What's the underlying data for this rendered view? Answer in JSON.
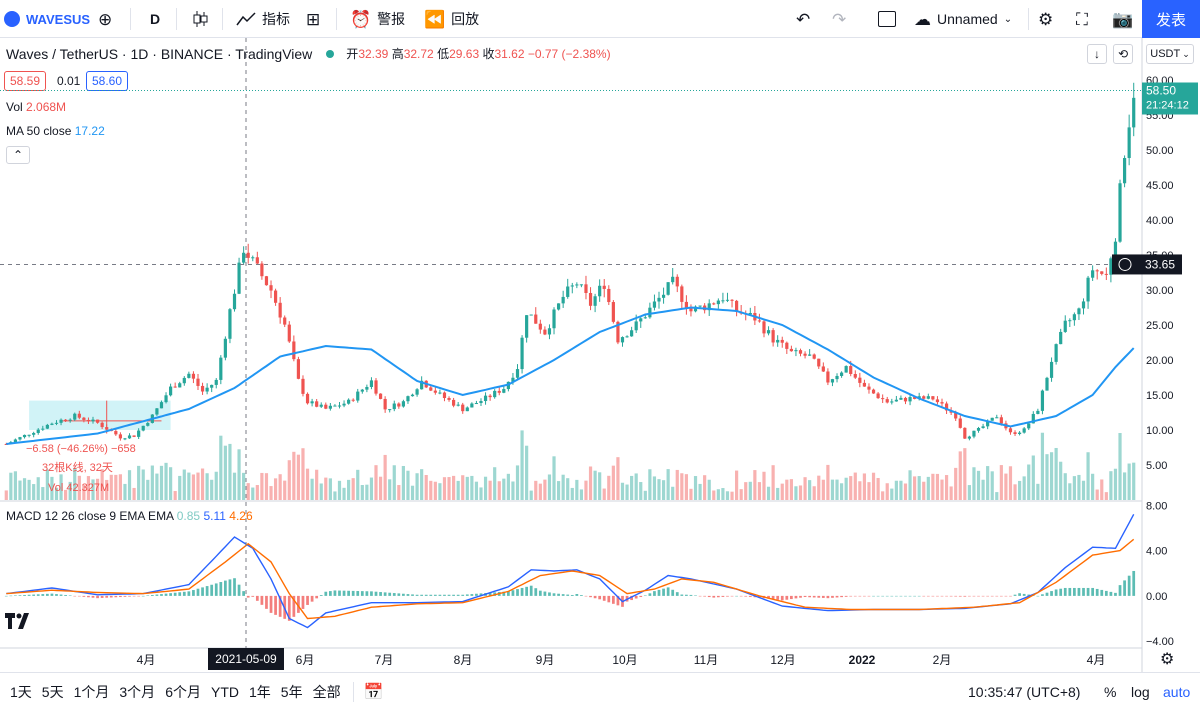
{
  "toolbar": {
    "symbol": "WAVESUS",
    "interval": "D",
    "indicators": "指标",
    "alert": "警报",
    "replay": "回放",
    "layout_name": "Unnamed",
    "publish": "发表"
  },
  "legend": {
    "title": "Waves / TetherUS · 1D · BINANCE · TradingView",
    "o_label": "开",
    "o": "32.39",
    "h_label": "高",
    "h": "32.72",
    "l_label": "低",
    "l": "29.63",
    "c_label": "收",
    "c": "31.62",
    "change": "−0.77 (−2.38%)",
    "sell": "58.59",
    "spread": "0.01",
    "buy": "58.60",
    "vol_label": "Vol",
    "vol_value": "2.068M",
    "ma_label": "MA 50 close",
    "ma_value": "17.22",
    "macd_label": "MACD 12 26 close 9 EMA EMA",
    "macd_hist": "0.85",
    "macd_line": "5.11",
    "macd_signal": "4.26",
    "currency": "USDT"
  },
  "measure": {
    "line1": "−6.58 (−46.26%) −658",
    "line2": "32根K线, 32天",
    "line3": "Vol 42.327M"
  },
  "crosshair": {
    "date": "2021-05-09",
    "price": "33.65"
  },
  "last_price": {
    "value": "58.50",
    "countdown": "21:24:12"
  },
  "colors": {
    "up": "#26a69a",
    "down": "#ef5350",
    "ma": "#2196f3",
    "macd": "#2962ff",
    "signal": "#ff6d00",
    "accent": "#2962ff"
  },
  "bottom": {
    "ranges": [
      "1天",
      "5天",
      "1个月",
      "3个月",
      "6个月",
      "YTD",
      "1年",
      "5年",
      "全部"
    ],
    "clock": "10:35:47 (UTC+8)",
    "pct": "%",
    "log": "log",
    "auto": "auto"
  },
  "chart_data": [
    {
      "type": "candlestick",
      "series_name": "Waves / TetherUS",
      "x_ticks": [
        "4月",
        "6月",
        "7月",
        "8月",
        "9月",
        "10月",
        "11月",
        "12月",
        "2022",
        "2月",
        "4月"
      ],
      "y_ticks": [
        "60.00",
        "55.00",
        "50.00",
        "45.00",
        "40.00",
        "35.00",
        "30.00",
        "25.00",
        "20.00",
        "15.00",
        "10.00",
        "5.00"
      ],
      "ylim": [
        0,
        62
      ],
      "price_path": [
        [
          0,
          8
        ],
        [
          5,
          9.5
        ],
        [
          10,
          11
        ],
        [
          15,
          12
        ],
        [
          20,
          11
        ],
        [
          25,
          9
        ],
        [
          28,
          9.2
        ],
        [
          32,
          12
        ],
        [
          36,
          16
        ],
        [
          40,
          18
        ],
        [
          43,
          15.5
        ],
        [
          46,
          17
        ],
        [
          49,
          27
        ],
        [
          52,
          36
        ],
        [
          55,
          33
        ],
        [
          58,
          30
        ],
        [
          61,
          25
        ],
        [
          64,
          17
        ],
        [
          66,
          14
        ],
        [
          70,
          13
        ],
        [
          75,
          14
        ],
        [
          80,
          17
        ],
        [
          83,
          13
        ],
        [
          87,
          14
        ],
        [
          91,
          17
        ],
        [
          95,
          15
        ],
        [
          100,
          13
        ],
        [
          105,
          14.5
        ],
        [
          109,
          16
        ],
        [
          112,
          19
        ],
        [
          114,
          27
        ],
        [
          118,
          24
        ],
        [
          122,
          29
        ],
        [
          125,
          31
        ],
        [
          128,
          28
        ],
        [
          131,
          31
        ],
        [
          134,
          23
        ],
        [
          138,
          25
        ],
        [
          142,
          28
        ],
        [
          146,
          31
        ],
        [
          150,
          27
        ],
        [
          154,
          28
        ],
        [
          157,
          29
        ],
        [
          160,
          27
        ],
        [
          164,
          26
        ],
        [
          168,
          23
        ],
        [
          172,
          21
        ],
        [
          176,
          20.5
        ],
        [
          180,
          17
        ],
        [
          184,
          19
        ],
        [
          188,
          16
        ],
        [
          193,
          14
        ],
        [
          198,
          14.5
        ],
        [
          203,
          14.5
        ],
        [
          208,
          12
        ],
        [
          210,
          9
        ],
        [
          213,
          10
        ],
        [
          217,
          12
        ],
        [
          220,
          9.5
        ],
        [
          223,
          10
        ],
        [
          226,
          13
        ],
        [
          229,
          20
        ],
        [
          232,
          25
        ],
        [
          235,
          27
        ],
        [
          238,
          33
        ],
        [
          241,
          32
        ],
        [
          243,
          38
        ],
        [
          245,
          50
        ],
        [
          247,
          58.5
        ]
      ],
      "ma50_path": [
        [
          0,
          8
        ],
        [
          20,
          9.5
        ],
        [
          40,
          13
        ],
        [
          50,
          16
        ],
        [
          60,
          20.5
        ],
        [
          70,
          22
        ],
        [
          80,
          21.5
        ],
        [
          90,
          17
        ],
        [
          100,
          15
        ],
        [
          110,
          16.5
        ],
        [
          120,
          20
        ],
        [
          130,
          24
        ],
        [
          140,
          26.5
        ],
        [
          150,
          27.5
        ],
        [
          160,
          27
        ],
        [
          170,
          25
        ],
        [
          180,
          21.5
        ],
        [
          190,
          17.5
        ],
        [
          200,
          14.5
        ],
        [
          210,
          12
        ],
        [
          220,
          10.5
        ],
        [
          230,
          12
        ],
        [
          238,
          15
        ],
        [
          243,
          19
        ],
        [
          247,
          21.7
        ]
      ]
    },
    {
      "type": "macd",
      "y_ticks": [
        "8.00",
        "4.00",
        "0.00",
        "−4.00"
      ],
      "ylim": [
        -4.6,
        8.2
      ],
      "macd_path": [
        [
          0,
          0.2
        ],
        [
          10,
          0.7
        ],
        [
          20,
          0.1
        ],
        [
          30,
          0.2
        ],
        [
          40,
          1.0
        ],
        [
          46,
          3.5
        ],
        [
          50,
          5.2
        ],
        [
          54,
          4.2
        ],
        [
          58,
          1.5
        ],
        [
          62,
          -2.0
        ],
        [
          66,
          -2.8
        ],
        [
          70,
          -1.5
        ],
        [
          80,
          -0.6
        ],
        [
          90,
          -0.6
        ],
        [
          100,
          -0.5
        ],
        [
          110,
          0.8
        ],
        [
          115,
          2.3
        ],
        [
          120,
          2.2
        ],
        [
          125,
          2.3
        ],
        [
          130,
          1.5
        ],
        [
          135,
          -0.5
        ],
        [
          140,
          0.5
        ],
        [
          145,
          1.8
        ],
        [
          150,
          1.5
        ],
        [
          160,
          0.6
        ],
        [
          170,
          -0.9
        ],
        [
          180,
          -1.3
        ],
        [
          190,
          -1.2
        ],
        [
          200,
          -1.2
        ],
        [
          210,
          -1.1
        ],
        [
          220,
          -0.7
        ],
        [
          226,
          0.3
        ],
        [
          232,
          2.5
        ],
        [
          238,
          4.3
        ],
        [
          243,
          4.2
        ],
        [
          247,
          7.2
        ]
      ],
      "signal_path": [
        [
          0,
          0.2
        ],
        [
          10,
          0.5
        ],
        [
          20,
          0.3
        ],
        [
          30,
          0.2
        ],
        [
          40,
          0.6
        ],
        [
          48,
          3.0
        ],
        [
          53,
          4.6
        ],
        [
          58,
          3.0
        ],
        [
          62,
          0.2
        ],
        [
          66,
          -2.0
        ],
        [
          72,
          -1.8
        ],
        [
          80,
          -1.0
        ],
        [
          90,
          -0.7
        ],
        [
          100,
          -0.6
        ],
        [
          110,
          0.4
        ],
        [
          117,
          1.8
        ],
        [
          124,
          2.2
        ],
        [
          130,
          1.8
        ],
        [
          136,
          0.2
        ],
        [
          142,
          0.6
        ],
        [
          148,
          1.5
        ],
        [
          155,
          1.2
        ],
        [
          165,
          0.0
        ],
        [
          175,
          -1.0
        ],
        [
          185,
          -1.2
        ],
        [
          200,
          -1.2
        ],
        [
          212,
          -1.0
        ],
        [
          222,
          -0.6
        ],
        [
          230,
          1.2
        ],
        [
          238,
          3.6
        ],
        [
          244,
          4.0
        ],
        [
          247,
          5.0
        ]
      ]
    }
  ]
}
